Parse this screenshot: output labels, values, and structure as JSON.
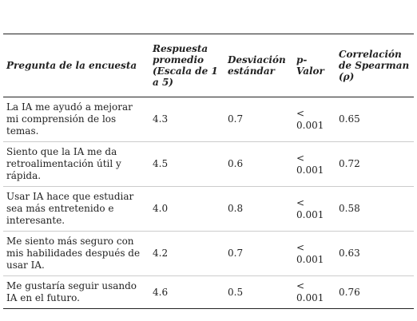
{
  "table": {
    "header": [
      "Pregunta de la encuesta",
      "Respuesta promedio (Escala de 1 a 5)",
      "Desviación estándar",
      "p-Valor",
      "Correlación de Spearman (ρ)"
    ],
    "rows": [
      [
        "La IA me ayudó a mejorar mi comprensión de los temas.",
        "4.3",
        "0.7",
        "< 0.001",
        "0.65"
      ],
      [
        "Siento que la IA me da retroalimentación útil y rápida.",
        "4.5",
        "0.6",
        "< 0.001",
        "0.72"
      ],
      [
        "Usar IA hace que estudiar sea más entretenido e interesante.",
        "4.0",
        "0.8",
        "< 0.001",
        "0.58"
      ],
      [
        "Me siento más seguro con mis habilidades después de usar IA.",
        "4.2",
        "0.7",
        "< 0.001",
        "0.63"
      ],
      [
        "Me gustaría seguir usando IA en el futuro.",
        "4.6",
        "0.5",
        "< 0.001",
        "0.76"
      ]
    ]
  }
}
